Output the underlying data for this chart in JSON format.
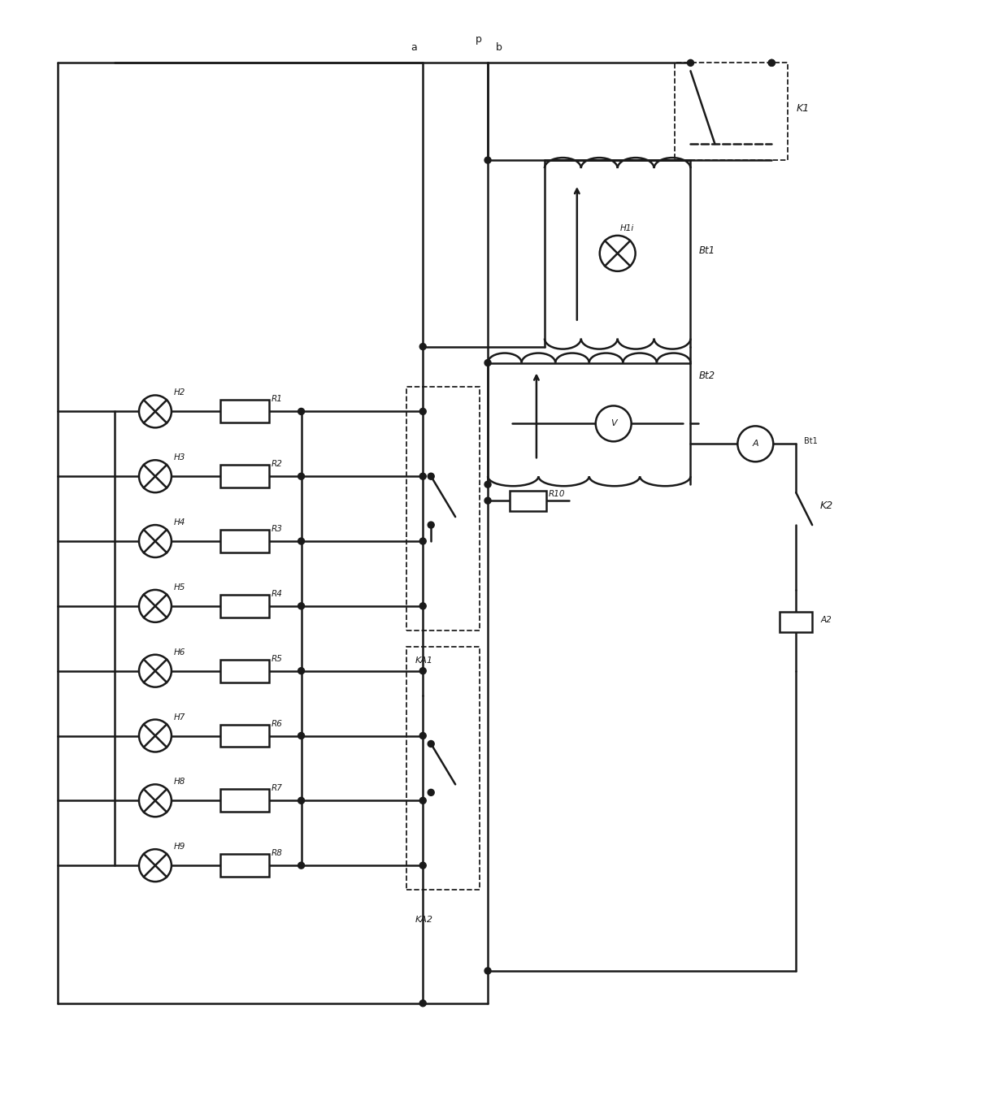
{
  "bg_color": "#ffffff",
  "line_color": "#1a1a1a",
  "line_width": 1.8,
  "figsize": [
    12.4,
    13.76
  ],
  "dpi": 100,
  "xlim": [
    0,
    124
  ],
  "ylim": [
    0,
    137.6
  ],
  "rows": [
    {
      "y": 87,
      "lamp": "H2",
      "res": "R1"
    },
    {
      "y": 79,
      "lamp": "H3",
      "res": "R2"
    },
    {
      "y": 71,
      "lamp": "H4",
      "res": "R3"
    },
    {
      "y": 63,
      "lamp": "H5",
      "res": "R4"
    },
    {
      "y": 55,
      "lamp": "H6",
      "res": "R5"
    },
    {
      "y": 47,
      "lamp": "H7",
      "res": "R6"
    },
    {
      "y": 39,
      "lamp": "H8",
      "res": "R7"
    },
    {
      "y": 31,
      "lamp": "H9",
      "res": "R8"
    }
  ]
}
